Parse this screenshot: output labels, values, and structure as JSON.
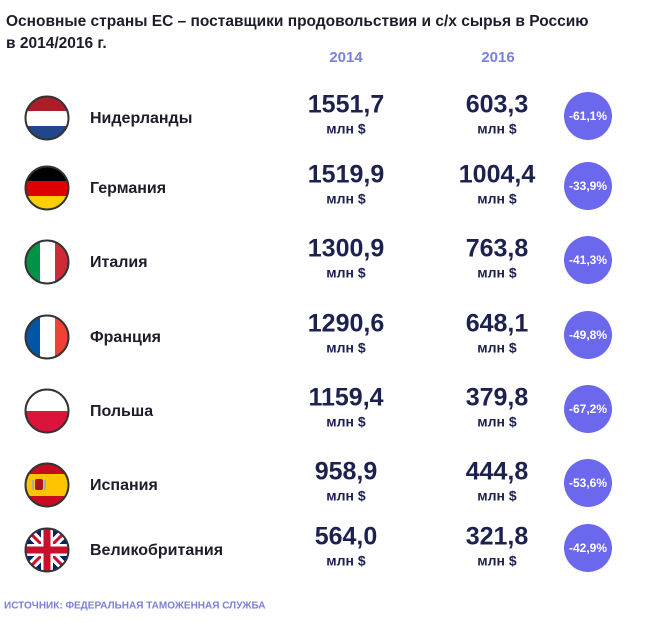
{
  "title": [
    "Основные страны ЕС – поставщики продовольствия и с/х сырья в Россию",
    "в 2014/2016 г."
  ],
  "columns": [
    "2014",
    "2016"
  ],
  "unit": "млн $",
  "rows": [
    {
      "country": "Нидерланды",
      "v2014": "1551,7",
      "v2016": "603,3",
      "change": "-61,1%"
    },
    {
      "country": "Германия",
      "v2014": "1519,9",
      "v2016": "1004,4",
      "change": "-33,9%"
    },
    {
      "country": "Италия",
      "v2014": "1300,9",
      "v2016": "763,8",
      "change": "-41,3%"
    },
    {
      "country": "Франция",
      "v2014": "1290,6",
      "v2016": "648,1",
      "change": "-49,8%"
    },
    {
      "country": "Польша",
      "v2014": "1159,4",
      "v2016": "379,8",
      "change": "-67,2%"
    },
    {
      "country": "Испания",
      "v2014": "958,9",
      "v2016": "444,8",
      "change": "-53,6%"
    },
    {
      "country": "Великобритания",
      "v2014": "564,0",
      "v2016": "321,8",
      "change": "-42,9%"
    }
  ],
  "source": "ИСТОЧНИК: ФЕДЕРАЛЬНАЯ ТАМОЖЕННАЯ СЛУЖБА"
}
